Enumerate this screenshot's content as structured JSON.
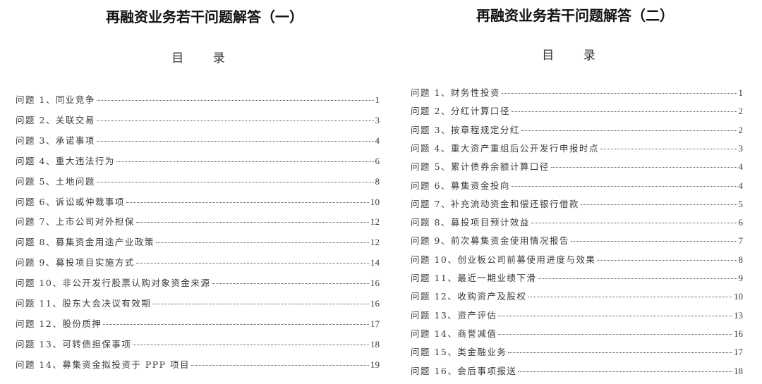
{
  "left": {
    "title": "再融资业务若干问题解答（一）",
    "toc_heading": "目 录",
    "items": [
      {
        "label": "问题 1、同业竞争",
        "page": "1"
      },
      {
        "label": "问题 2、关联交易",
        "page": "3"
      },
      {
        "label": "问题 3、承诺事项",
        "page": "4"
      },
      {
        "label": "问题 4、重大违法行为",
        "page": "6"
      },
      {
        "label": "问题 5、土地问题",
        "page": "8"
      },
      {
        "label": "问题 6、诉讼或仲裁事项",
        "page": "10"
      },
      {
        "label": "问题 7、上市公司对外担保",
        "page": "12"
      },
      {
        "label": "问题 8、募集资金用途产业政策",
        "page": "12"
      },
      {
        "label": "问题 9、募投项目实施方式",
        "page": "14"
      },
      {
        "label": "问题 10、非公开发行股票认购对象资金来源",
        "page": "16"
      },
      {
        "label": "问题 11、股东大会决议有效期",
        "page": "16"
      },
      {
        "label": "问题 12、股份质押",
        "page": "17"
      },
      {
        "label": "问题 13、可转债担保事项",
        "page": "18"
      },
      {
        "label": "问题 14、募集资金拟投资于 PPP 项目",
        "page": "19"
      }
    ]
  },
  "right": {
    "title": "再融资业务若干问题解答（二）",
    "toc_heading": "目 录",
    "items": [
      {
        "label": "问题 1、财务性投资",
        "page": "1"
      },
      {
        "label": "问题 2、分红计算口径",
        "page": "2"
      },
      {
        "label": "问题 3、按章程规定分红",
        "page": "2"
      },
      {
        "label": "问题 4、重大资产重组后公开发行申报时点",
        "page": "3"
      },
      {
        "label": "问题 5、累计债券余额计算口径",
        "page": "4"
      },
      {
        "label": "问题 6、募集资金投向",
        "page": "4"
      },
      {
        "label": "问题 7、补充流动资金和偿还银行借款",
        "page": "5"
      },
      {
        "label": "问题 8、募投项目预计效益",
        "page": "6"
      },
      {
        "label": "问题 9、前次募集资金使用情况报告",
        "page": "7"
      },
      {
        "label": "问题 10、创业板公司前募使用进度与效果",
        "page": "8"
      },
      {
        "label": "问题 11、最近一期业绩下滑",
        "page": "9"
      },
      {
        "label": "问题 12、收购资产及股权",
        "page": "10"
      },
      {
        "label": "问题 13、资产评估",
        "page": "13"
      },
      {
        "label": "问题 14、商誉减值",
        "page": "16"
      },
      {
        "label": "问题 15、类金融业务",
        "page": "17"
      },
      {
        "label": "问题 16、会后事项报送",
        "page": "18"
      }
    ]
  }
}
